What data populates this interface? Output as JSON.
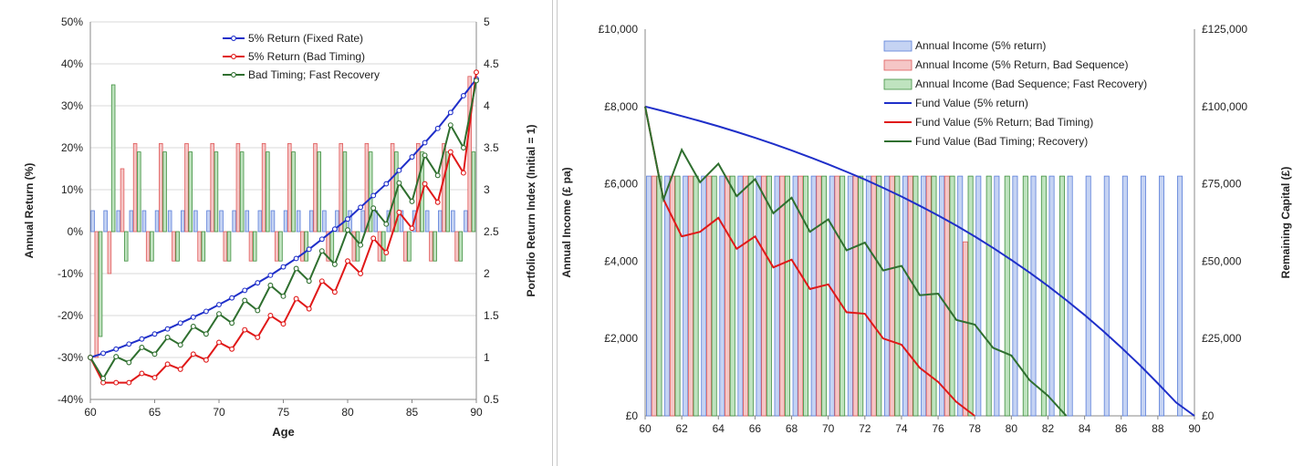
{
  "chart_data": [
    {
      "type": "bar+line",
      "xlabel": "Age",
      "ylabel_left": "Annual Return (%)",
      "ylabel_right": "Portfolio Return Index (Initial = 1)",
      "x_ticks": [
        "60",
        "65",
        "70",
        "75",
        "80",
        "85",
        "90"
      ],
      "y_left_ticks": [
        "50%",
        "40%",
        "30%",
        "20%",
        "10%",
        "0%",
        "-10%",
        "-20%",
        "-30%",
        "-40%"
      ],
      "y_right_ticks": [
        "5",
        "4.5",
        "4",
        "3.5",
        "3",
        "2.5",
        "2",
        "1.5",
        "1",
        "0.5"
      ],
      "ylim_left": [
        -40,
        50
      ],
      "ylim_right": [
        0.5,
        5
      ],
      "xlim": [
        60,
        90
      ],
      "grid": true,
      "legend_position": "top-center",
      "bar_series": [
        {
          "name": "5% Return (Fixed Rate)",
          "color": "#5b7fd9",
          "fill": "#c5d3f3",
          "x": [
            60,
            61,
            62,
            63,
            64,
            65,
            66,
            67,
            68,
            69,
            70,
            71,
            72,
            73,
            74,
            75,
            76,
            77,
            78,
            79,
            80,
            81,
            82,
            83,
            84,
            85,
            86,
            87,
            88,
            89
          ],
          "values": [
            5,
            5,
            5,
            5,
            5,
            5,
            5,
            5,
            5,
            5,
            5,
            5,
            5,
            5,
            5,
            5,
            5,
            5,
            5,
            5,
            5,
            5,
            5,
            5,
            5,
            5,
            5,
            5,
            5,
            5
          ]
        },
        {
          "name": "5% Return (Bad Timing)",
          "color": "#e05a5a",
          "fill": "#f5c6c6",
          "x": [
            60,
            61,
            62,
            63,
            64,
            65,
            66,
            67,
            68,
            69,
            70,
            71,
            72,
            73,
            74,
            75,
            76,
            77,
            78,
            79,
            80,
            81,
            82,
            83,
            84,
            85,
            86,
            87,
            88,
            89
          ],
          "values": [
            -30,
            -10,
            15,
            21,
            -7,
            21,
            -7,
            21,
            -7,
            21,
            -7,
            21,
            -7,
            21,
            -7,
            21,
            -7,
            21,
            -7,
            21,
            -7,
            21,
            -7,
            21,
            -7,
            21,
            -7,
            21,
            -7,
            37
          ]
        },
        {
          "name": "Bad Timing; Fast Recovery",
          "color": "#3f8f3f",
          "fill": "#bfe3bf",
          "x": [
            60,
            61,
            62,
            63,
            64,
            65,
            66,
            67,
            68,
            69,
            70,
            71,
            72,
            73,
            74,
            75,
            76,
            77,
            78,
            79,
            80,
            81,
            82,
            83,
            84,
            85,
            86,
            87,
            88,
            89
          ],
          "values": [
            -25,
            35,
            -7,
            19,
            -7,
            19,
            -7,
            19,
            -7,
            19,
            -7,
            19,
            -7,
            19,
            -7,
            19,
            -7,
            19,
            -7,
            19,
            -7,
            19,
            -7,
            19,
            -7,
            19,
            -7,
            19,
            -7,
            19
          ]
        }
      ],
      "line_series": [
        {
          "name": "5% Return (Fixed Rate)",
          "color": "#1f2fc9",
          "x": [
            60,
            61,
            62,
            63,
            64,
            65,
            66,
            67,
            68,
            69,
            70,
            71,
            72,
            73,
            74,
            75,
            76,
            77,
            78,
            79,
            80,
            81,
            82,
            83,
            84,
            85,
            86,
            87,
            88,
            89,
            90
          ],
          "values": [
            1.0,
            1.05,
            1.1,
            1.16,
            1.22,
            1.28,
            1.34,
            1.41,
            1.48,
            1.55,
            1.63,
            1.71,
            1.8,
            1.89,
            1.98,
            2.08,
            2.18,
            2.29,
            2.41,
            2.53,
            2.65,
            2.79,
            2.93,
            3.07,
            3.23,
            3.39,
            3.56,
            3.73,
            3.92,
            4.12,
            4.32
          ]
        },
        {
          "name": "5% Return (Bad Timing)",
          "color": "#e01818",
          "x": [
            60,
            61,
            62,
            63,
            64,
            65,
            66,
            67,
            68,
            69,
            70,
            71,
            72,
            73,
            74,
            75,
            76,
            77,
            78,
            79,
            80,
            81,
            82,
            83,
            84,
            85,
            86,
            87,
            88,
            89,
            90
          ],
          "values": [
            1.0,
            0.7,
            0.7,
            0.7,
            0.81,
            0.76,
            0.92,
            0.86,
            1.04,
            0.97,
            1.18,
            1.1,
            1.33,
            1.24,
            1.5,
            1.4,
            1.7,
            1.58,
            1.91,
            1.78,
            2.15,
            2.0,
            2.42,
            2.25,
            2.73,
            2.54,
            3.07,
            2.85,
            3.45,
            3.2,
            4.4
          ]
        },
        {
          "name": "Bad Timing; Fast Recovery",
          "color": "#2f6f2f",
          "x": [
            60,
            61,
            62,
            63,
            64,
            65,
            66,
            67,
            68,
            69,
            70,
            71,
            72,
            73,
            74,
            75,
            76,
            77,
            78,
            79,
            80,
            81,
            82,
            83,
            84,
            85,
            86,
            87,
            88,
            89,
            90
          ],
          "values": [
            1.0,
            0.75,
            1.01,
            0.94,
            1.12,
            1.04,
            1.24,
            1.15,
            1.37,
            1.28,
            1.52,
            1.41,
            1.68,
            1.56,
            1.86,
            1.73,
            2.06,
            1.91,
            2.27,
            2.11,
            2.52,
            2.34,
            2.78,
            2.59,
            3.08,
            2.86,
            3.41,
            3.17,
            3.77,
            3.5,
            4.3
          ]
        }
      ]
    },
    {
      "type": "bar+line",
      "xlabel": "",
      "ylabel_left": "Annual Income (£ pa)",
      "ylabel_right": "Remaining Capital (£)",
      "x_ticks": [
        "60",
        "62",
        "64",
        "66",
        "68",
        "70",
        "72",
        "74",
        "76",
        "78",
        "80",
        "82",
        "84",
        "86",
        "88",
        "90"
      ],
      "y_left_ticks": [
        "£10,000",
        "£8,000",
        "£6,000",
        "£4,000",
        "£2,000",
        "£0"
      ],
      "y_right_ticks": [
        "£125,000",
        "£100,000",
        "£75,000",
        "£50,000",
        "£25,000",
        "£0"
      ],
      "ylim_left": [
        0,
        10000
      ],
      "ylim_right": [
        0,
        125000
      ],
      "xlim": [
        60,
        90
      ],
      "grid": false,
      "legend_position": "top-right",
      "bar_series": [
        {
          "name": "Annual Income (5% return)",
          "color": "#5b7fd9",
          "fill": "#c5d3f3",
          "x": [
            60,
            61,
            62,
            63,
            64,
            65,
            66,
            67,
            68,
            69,
            70,
            71,
            72,
            73,
            74,
            75,
            76,
            77,
            78,
            79,
            80,
            81,
            82,
            83,
            84,
            85,
            86,
            87,
            88,
            89
          ],
          "values": [
            6200,
            6200,
            6200,
            6200,
            6200,
            6200,
            6200,
            6200,
            6200,
            6200,
            6200,
            6200,
            6200,
            6200,
            6200,
            6200,
            6200,
            6200,
            6200,
            6200,
            6200,
            6200,
            6200,
            6200,
            6200,
            6200,
            6200,
            6200,
            6200,
            6200
          ]
        },
        {
          "name": "Annual Income (5% Return, Bad Sequence)",
          "color": "#e05a5a",
          "fill": "#f5c6c6",
          "x": [
            60,
            61,
            62,
            63,
            64,
            65,
            66,
            67,
            68,
            69,
            70,
            71,
            72,
            73,
            74,
            75,
            76,
            77
          ],
          "values": [
            6200,
            6200,
            6200,
            6200,
            6200,
            6200,
            6200,
            6200,
            6200,
            6200,
            6200,
            6200,
            6200,
            6200,
            6200,
            6200,
            6200,
            4500
          ]
        },
        {
          "name": "Annual Income (Bad Sequence; Fast Recovery)",
          "color": "#3f8f3f",
          "fill": "#bfe3bf",
          "x": [
            60,
            61,
            62,
            63,
            64,
            65,
            66,
            67,
            68,
            69,
            70,
            71,
            72,
            73,
            74,
            75,
            76,
            77,
            78,
            79,
            80,
            81,
            82
          ],
          "values": [
            6200,
            6200,
            6200,
            6200,
            6200,
            6200,
            6200,
            6200,
            6200,
            6200,
            6200,
            6200,
            6200,
            6200,
            6200,
            6200,
            6200,
            6200,
            6200,
            6200,
            6200,
            6200,
            6200
          ]
        }
      ],
      "line_series": [
        {
          "name": "Fund Value (5% return)",
          "color": "#1f2fc9",
          "x": [
            60,
            61,
            62,
            63,
            64,
            65,
            66,
            67,
            68,
            69,
            70,
            71,
            72,
            73,
            74,
            75,
            76,
            77,
            78,
            79,
            80,
            81,
            82,
            83,
            84,
            85,
            86,
            87,
            88,
            89,
            90
          ],
          "values": [
            100000,
            98500,
            96900,
            95300,
            93600,
            91800,
            89900,
            87900,
            85800,
            83600,
            81300,
            78900,
            76400,
            73700,
            70900,
            67900,
            64800,
            61500,
            58000,
            54300,
            50400,
            46300,
            42000,
            37400,
            32600,
            27500,
            22100,
            16500,
            10500,
            4300,
            0
          ]
        },
        {
          "name": "Fund Value (5% Return; Bad Timing)",
          "color": "#e01818",
          "x": [
            60,
            61,
            62,
            63,
            64,
            65,
            66,
            67,
            68,
            69,
            70,
            71,
            72,
            73,
            74,
            75,
            76,
            77,
            78
          ],
          "values": [
            100000,
            70000,
            58000,
            59500,
            64000,
            54000,
            58000,
            48000,
            50500,
            41000,
            42500,
            33500,
            33000,
            25000,
            23000,
            15500,
            11000,
            4500,
            0
          ]
        },
        {
          "name": "Fund Value (Bad Timing; Recovery)",
          "color": "#2f6f2f",
          "x": [
            60,
            61,
            62,
            63,
            64,
            65,
            66,
            67,
            68,
            69,
            70,
            71,
            72,
            73,
            74,
            75,
            76,
            77,
            78,
            79,
            80,
            81,
            82,
            83
          ],
          "values": [
            100000,
            70000,
            86000,
            75500,
            81500,
            71000,
            76500,
            65500,
            70500,
            59500,
            63500,
            53500,
            56000,
            47000,
            48500,
            39000,
            39500,
            31000,
            29500,
            22000,
            19500,
            11500,
            6500,
            0
          ]
        }
      ]
    }
  ]
}
